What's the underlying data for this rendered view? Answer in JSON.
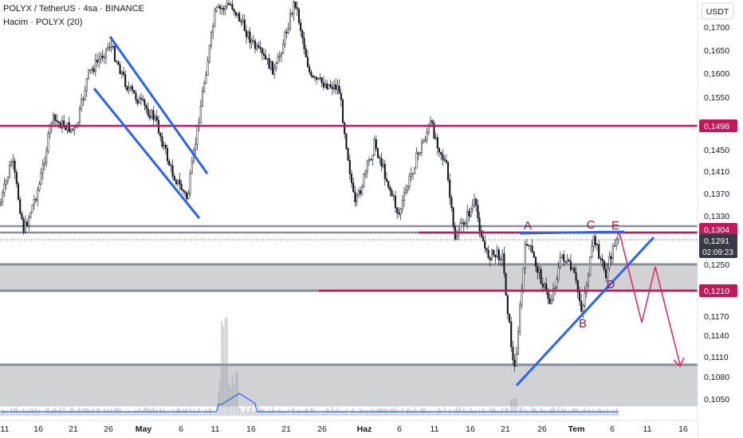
{
  "header": {
    "title": "POLYX / TetherUS · 4sa · BINANCE",
    "volume_label": "Hacim · POLYX (20)"
  },
  "currency": "USDT",
  "chart_data": {
    "type": "candlestick",
    "symbol": "POLYX / TetherUS",
    "interval": "4sa",
    "exchange": "BINANCE",
    "y_ticks": [
      0.17,
      0.165,
      0.16,
      0.155,
      0.1498,
      0.145,
      0.141,
      0.137,
      0.133,
      0.1304,
      0.1291,
      0.125,
      0.121,
      0.117,
      0.114,
      0.111,
      0.108,
      0.105
    ],
    "y_tick_labels": [
      "0,1700",
      "0,1650",
      "0,1600",
      "0,1550",
      "0,1498",
      "0,1450",
      "0,1410",
      "0,1370",
      "0,1330",
      "0,1304",
      "0,1291",
      "0,1250",
      "0,1210",
      "0,1170",
      "0,1140",
      "0,1110",
      "0,1080",
      "0,1050"
    ],
    "x_tick_labels": [
      "11",
      "16",
      "21",
      "26",
      "May",
      "6",
      "11",
      "16",
      "21",
      "26",
      "Haz",
      "6",
      "11",
      "16",
      "21",
      "26",
      "Tem",
      "6",
      "11",
      "16"
    ],
    "levels": [
      {
        "value": 0.1498,
        "label": "0,1498",
        "color": "#c2185b"
      },
      {
        "value": 0.1304,
        "label": "0,1304",
        "color": "#c2185b"
      },
      {
        "value": 0.121,
        "label": "0,1210",
        "color": "#c2185b"
      }
    ],
    "current_price": {
      "value": 0.1291,
      "label": "0,1291",
      "countdown": "02:09:23",
      "color": "#363a45"
    },
    "gray_zones": [
      {
        "from": 0.121,
        "to": 0.125
      },
      {
        "from": 0.104,
        "to": 0.1098
      }
    ],
    "pattern_points": [
      "A",
      "B",
      "C",
      "D",
      "E"
    ],
    "colors": {
      "drawing_blue": "#2962ff",
      "level_red": "#c2185b",
      "projection": "#e91e63",
      "candle": "#131722"
    }
  }
}
